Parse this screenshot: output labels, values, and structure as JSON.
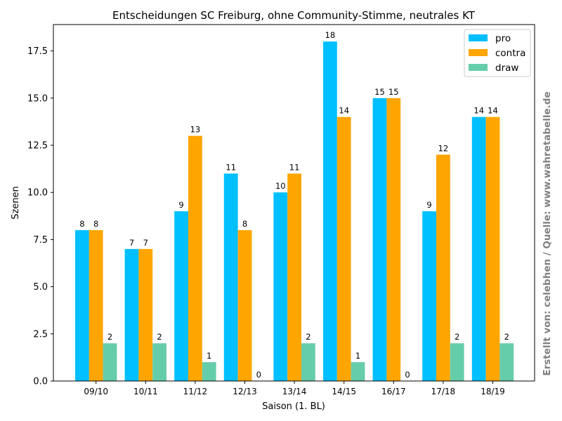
{
  "chart_data": {
    "type": "bar",
    "title": "Entscheidungen SC Freiburg, ohne Community-Stimme, neutrales KT",
    "xlabel": "Saison (1. BL)",
    "ylabel": "Szenen",
    "categories": [
      "09/10",
      "10/11",
      "11/12",
      "12/13",
      "13/14",
      "14/15",
      "16/17",
      "17/18",
      "18/19"
    ],
    "series": [
      {
        "name": "pro",
        "color": "#00bfff",
        "values": [
          8,
          7,
          9,
          11,
          10,
          18,
          15,
          9,
          14
        ]
      },
      {
        "name": "contra",
        "color": "#ffa500",
        "values": [
          8,
          7,
          13,
          8,
          11,
          14,
          15,
          12,
          14
        ]
      },
      {
        "name": "draw",
        "color": "#66cdaa",
        "values": [
          2,
          2,
          1,
          0,
          2,
          1,
          0,
          2,
          2
        ]
      }
    ],
    "ylim": [
      0,
      18.9
    ],
    "yticks": [
      "0.0",
      "2.5",
      "5.0",
      "7.5",
      "10.0",
      "12.5",
      "15.0",
      "17.5"
    ],
    "grid": false,
    "legend_position": "top-right",
    "show_value_labels": true
  },
  "credit": "Erstellt von: celebhen / Quelle: www.wahretabelle.de"
}
